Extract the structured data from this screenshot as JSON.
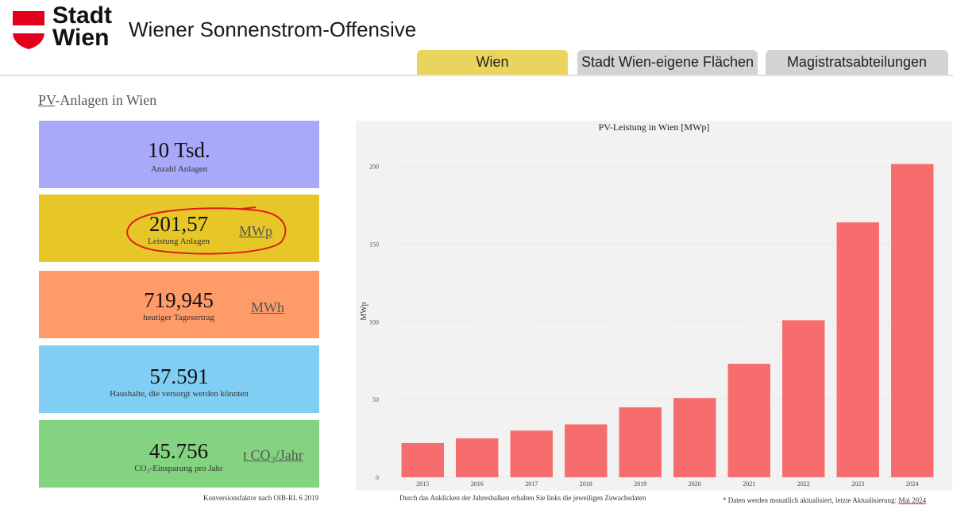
{
  "header": {
    "logo_text_line1": "Stadt",
    "logo_text_line2": "Wien",
    "title": "Wiener Sonnenstrom-Offensive",
    "tabs": [
      {
        "label": "Wien",
        "active": true
      },
      {
        "label": "Stadt Wien-eigene Flächen",
        "active": false
      },
      {
        "label": "Magistratsabteilungen",
        "active": false
      }
    ]
  },
  "section": {
    "title_abbr": "PV",
    "title_rest": "-Anlagen in Wien"
  },
  "kpis": [
    {
      "value": "10 Tsd.",
      "label": "Anzahl Anlagen",
      "unit": "",
      "color": "#a9a9fa"
    },
    {
      "value": "201,57",
      "label": "Leistung Anlagen",
      "unit": "MWp",
      "color": "#e7c728"
    },
    {
      "value": "719,945",
      "label": "heutiger Tagesertrag",
      "unit": "MWh",
      "color": "#fe9b69"
    },
    {
      "value": "57.591",
      "label": "Haushalte, die versorgt werden könnten",
      "unit": "",
      "color": "#80cef4"
    },
    {
      "value": "45.756",
      "label": "CO₂-Einsparung pro Jahr",
      "unit": "t CO₂/Jahr",
      "color": "#83d381"
    }
  ],
  "footnotes": {
    "conversion": "Konversionsfaktor nach OIB-RL 6 2019",
    "click_hint": "Durch das Anklicken der Jahresbalken erhalten Sie links die jeweiligen Zuwachsdaten",
    "update_prefix": "* Daten werden monatlich aktualisiert, letzte Aktualisierung: ",
    "update_date": "Mai 2024"
  },
  "chart_data": {
    "type": "bar",
    "title": "PV-Leistung in Wien [MWp]",
    "xlabel": "",
    "ylabel": "MWp",
    "categories": [
      "2015",
      "2016",
      "2017",
      "2018",
      "2019",
      "2020",
      "2021",
      "2022",
      "2023",
      "2024"
    ],
    "values": [
      22,
      25,
      30,
      34,
      45,
      51,
      73,
      101,
      164,
      201.57
    ],
    "yticks": [
      0,
      50,
      100,
      150,
      200
    ],
    "ylim": [
      0,
      210
    ],
    "bar_color": "#f76d6d",
    "grid": true
  }
}
